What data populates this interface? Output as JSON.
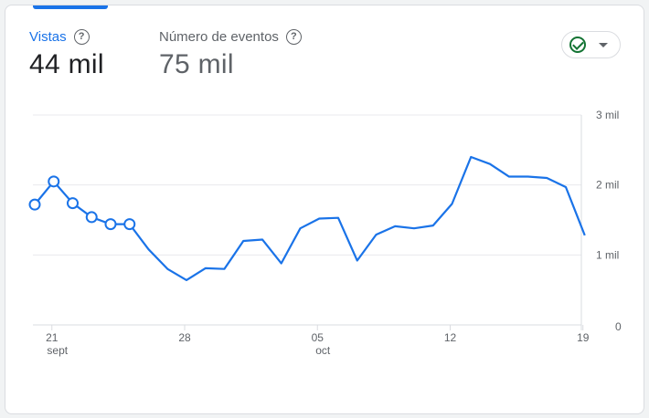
{
  "metrics": [
    {
      "label": "Vistas",
      "value": "44 mil"
    },
    {
      "label": "Número de eventos",
      "value": "75 mil"
    }
  ],
  "status_icon": "check-circle-icon",
  "colors": {
    "accent": "#1a73e8",
    "line": "#1a73e8",
    "check": "#137333"
  },
  "chart_data": {
    "type": "line",
    "title": "",
    "xlabel": "",
    "ylabel": "",
    "ylim": [
      0,
      3000
    ],
    "grid": true,
    "y_ticks": [
      {
        "value": 0,
        "label": "0"
      },
      {
        "value": 1000,
        "label": "1 mil"
      },
      {
        "value": 2000,
        "label": "2 mil"
      },
      {
        "value": 3000,
        "label": "3 mil"
      }
    ],
    "x_ticks": [
      {
        "date": "21",
        "month": "sept"
      },
      {
        "date": "28",
        "month": ""
      },
      {
        "date": "05",
        "month": "oct"
      },
      {
        "date": "12",
        "month": ""
      },
      {
        "date": "19",
        "month": ""
      }
    ],
    "x": [
      "20 sept",
      "21 sept",
      "22 sept",
      "23 sept",
      "24 sept",
      "25 sept",
      "26 sept",
      "27 sept",
      "28 sept",
      "29 sept",
      "30 sept",
      "1 oct",
      "2 oct",
      "3 oct",
      "4 oct",
      "5 oct",
      "6 oct",
      "7 oct",
      "8 oct",
      "9 oct",
      "10 oct",
      "11 oct",
      "12 oct",
      "13 oct",
      "14 oct",
      "15 oct",
      "16 oct",
      "17 oct",
      "18 oct",
      "19 oct"
    ],
    "values": [
      1720,
      2050,
      1740,
      1540,
      1440,
      1440,
      1080,
      800,
      640,
      810,
      800,
      1200,
      1220,
      880,
      1380,
      1520,
      1530,
      920,
      1290,
      1410,
      1380,
      1420,
      1730,
      2400,
      2300,
      2120,
      2120,
      2100,
      1970,
      1280
    ],
    "marker_count": 6
  }
}
